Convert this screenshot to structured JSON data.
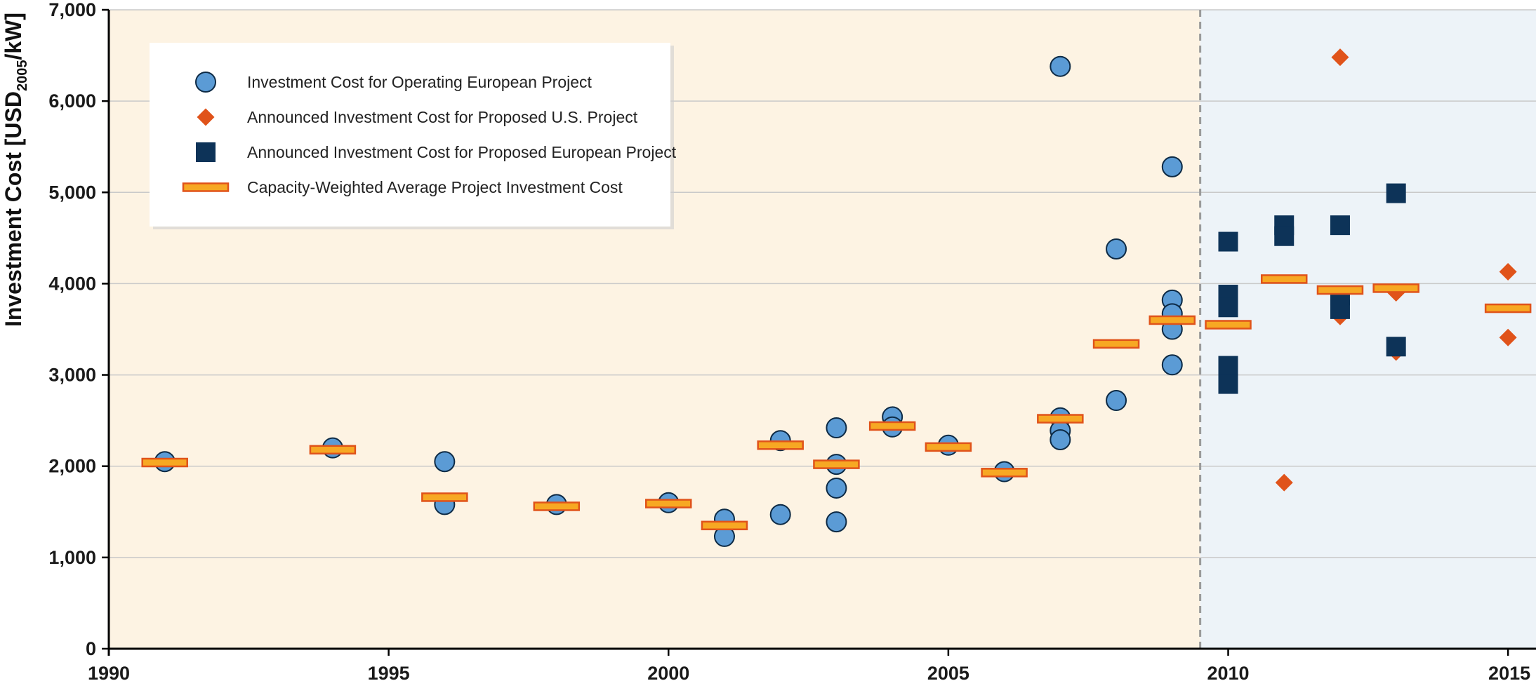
{
  "chart_data": {
    "type": "scatter",
    "ylabel": {
      "main": "Investment Cost [USD",
      "sub": "2005",
      "tail": "/kW]"
    },
    "xlim": [
      1990,
      2015.5
    ],
    "ylim": [
      0,
      7000
    ],
    "x_ticks": [
      1990,
      1995,
      2000,
      2005,
      2010,
      2015
    ],
    "x_tick_labels": [
      "1990",
      "1995",
      "2000",
      "2005",
      "2010",
      "2015"
    ],
    "y_ticks": [
      0,
      1000,
      2000,
      3000,
      4000,
      5000,
      6000,
      7000
    ],
    "y_tick_labels": [
      "0",
      "1,000",
      "2,000",
      "3,000",
      "4,000",
      "5,000",
      "6,000",
      "7,000"
    ],
    "grid": "horizontal",
    "legend_position": "top-left",
    "regions": [
      {
        "from": 1990,
        "to": 2009.5,
        "color": "#fdf3e3"
      },
      {
        "from": 2009.5,
        "to": 2015.5,
        "color": "#edf3f8"
      }
    ],
    "divider_x": 2009.5,
    "series": [
      {
        "name": "Investment Cost for Operating European Project",
        "marker": "circle",
        "color": "#5b9bd5",
        "points": [
          [
            1991,
            2050
          ],
          [
            1994,
            2200
          ],
          [
            1996,
            2050
          ],
          [
            1996,
            1580
          ],
          [
            1998,
            1580
          ],
          [
            2000,
            1600
          ],
          [
            2001,
            1420
          ],
          [
            2001,
            1230
          ],
          [
            2002,
            2280
          ],
          [
            2002,
            1470
          ],
          [
            2003,
            2420
          ],
          [
            2003,
            2020
          ],
          [
            2003,
            1760
          ],
          [
            2003,
            1390
          ],
          [
            2004,
            2540
          ],
          [
            2004,
            2430
          ],
          [
            2005,
            2230
          ],
          [
            2006,
            1940
          ],
          [
            2007,
            6380
          ],
          [
            2007,
            2530
          ],
          [
            2007,
            2390
          ],
          [
            2007,
            2290
          ],
          [
            2008,
            4380
          ],
          [
            2008,
            2720
          ],
          [
            2009,
            5280
          ],
          [
            2009,
            3820
          ],
          [
            2009,
            3670
          ],
          [
            2009,
            3500
          ],
          [
            2009,
            3110
          ]
        ]
      },
      {
        "name": "Announced Investment Cost for Proposed U.S. Project",
        "marker": "diamond",
        "color": "#e0531a",
        "points": [
          [
            2011,
            4540
          ],
          [
            2011,
            1820
          ],
          [
            2012,
            6480
          ],
          [
            2012,
            3640
          ],
          [
            2013,
            3900
          ],
          [
            2013,
            3250
          ],
          [
            2015,
            4130
          ],
          [
            2015,
            3410
          ]
        ]
      },
      {
        "name": "Announced Investment Cost for Proposed European Project",
        "marker": "square",
        "color": "#0d3358",
        "points": [
          [
            2010,
            4460
          ],
          [
            2010,
            3880
          ],
          [
            2010,
            3740
          ],
          [
            2010,
            3100
          ],
          [
            2010,
            2900
          ],
          [
            2011,
            4640
          ],
          [
            2011,
            4520
          ],
          [
            2012,
            4640
          ],
          [
            2012,
            3870
          ],
          [
            2012,
            3720
          ],
          [
            2013,
            4990
          ],
          [
            2013,
            3310
          ]
        ]
      },
      {
        "name": "Capacity-Weighted Average Project Investment Cost",
        "marker": "bar",
        "color": "#f7a823",
        "stroke": "#e0531a",
        "points": [
          [
            1991,
            2040
          ],
          [
            1994,
            2180
          ],
          [
            1996,
            1660
          ],
          [
            1998,
            1560
          ],
          [
            2000,
            1590
          ],
          [
            2001,
            1350
          ],
          [
            2002,
            2230
          ],
          [
            2003,
            2020
          ],
          [
            2004,
            2440
          ],
          [
            2005,
            2210
          ],
          [
            2006,
            1930
          ],
          [
            2007,
            2520
          ],
          [
            2008,
            3340
          ],
          [
            2009,
            3600
          ],
          [
            2010,
            3550
          ],
          [
            2011,
            4050
          ],
          [
            2012,
            3930
          ],
          [
            2013,
            3950
          ],
          [
            2015,
            3730
          ]
        ]
      }
    ]
  }
}
